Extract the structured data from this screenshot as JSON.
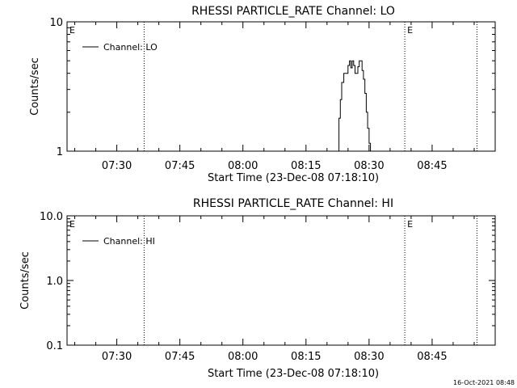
{
  "footer": {
    "timestamp": "16-Oct-2021 08:48"
  },
  "chart_data": [
    {
      "type": "line",
      "title": "RHESSI PARTICLE_RATE Channel: LO",
      "xlabel": "Start Time (23-Dec-08 07:18:10)",
      "ylabel": "Counts/sec",
      "yscale": "log",
      "ylim": [
        1,
        10
      ],
      "xlim": [
        "07:18:10",
        "09:00:00"
      ],
      "xticks": [
        "07:30",
        "07:45",
        "08:00",
        "08:15",
        "08:30",
        "08:45"
      ],
      "yticks": [
        "1",
        "10"
      ],
      "grid": false,
      "legend_position": "top-left",
      "series": [
        {
          "name": "Channel: LO",
          "x": [
            "08:22:30",
            "08:22:50",
            "08:23:10",
            "08:23:30",
            "08:24:00",
            "08:24:30",
            "08:25:00",
            "08:25:20",
            "08:25:40",
            "08:26:00",
            "08:26:20",
            "08:26:40",
            "08:27:00",
            "08:27:20",
            "08:27:40",
            "08:28:00",
            "08:28:20",
            "08:28:40",
            "08:29:00",
            "08:29:20",
            "08:29:40",
            "08:30:00",
            "08:30:20",
            "08:30:40"
          ],
          "y": [
            1,
            1.8,
            2.5,
            3.4,
            4.0,
            4.0,
            4.6,
            5.0,
            4.4,
            5.0,
            4.6,
            4.0,
            4.0,
            4.5,
            5.0,
            5.0,
            4.2,
            3.6,
            2.8,
            2.0,
            1.5,
            1.15,
            1,
            1
          ]
        }
      ],
      "annotations": [
        {
          "time": "07:36:30",
          "label": ""
        },
        {
          "time": "08:38:30",
          "label": "E"
        },
        {
          "time": "08:55:40",
          "label": ""
        },
        {
          "time": "07:18:10",
          "label": "E"
        }
      ]
    },
    {
      "type": "line",
      "title": "RHESSI PARTICLE_RATE Channel: HI",
      "xlabel": "Start Time (23-Dec-08 07:18:10)",
      "ylabel": "Counts/sec",
      "yscale": "log",
      "ylim": [
        0.1,
        10
      ],
      "xlim": [
        "07:18:10",
        "09:00:00"
      ],
      "xticks": [
        "07:30",
        "07:45",
        "08:00",
        "08:15",
        "08:30",
        "08:45"
      ],
      "yticks": [
        "0.1",
        "1.0",
        "10.0"
      ],
      "grid": false,
      "legend_position": "top-left",
      "series": [
        {
          "name": "Channel: HI",
          "x": [],
          "y": []
        }
      ],
      "annotations": [
        {
          "time": "07:36:30",
          "label": ""
        },
        {
          "time": "08:38:30",
          "label": "E"
        },
        {
          "time": "08:55:40",
          "label": ""
        },
        {
          "time": "07:18:10",
          "label": "E"
        }
      ]
    }
  ]
}
